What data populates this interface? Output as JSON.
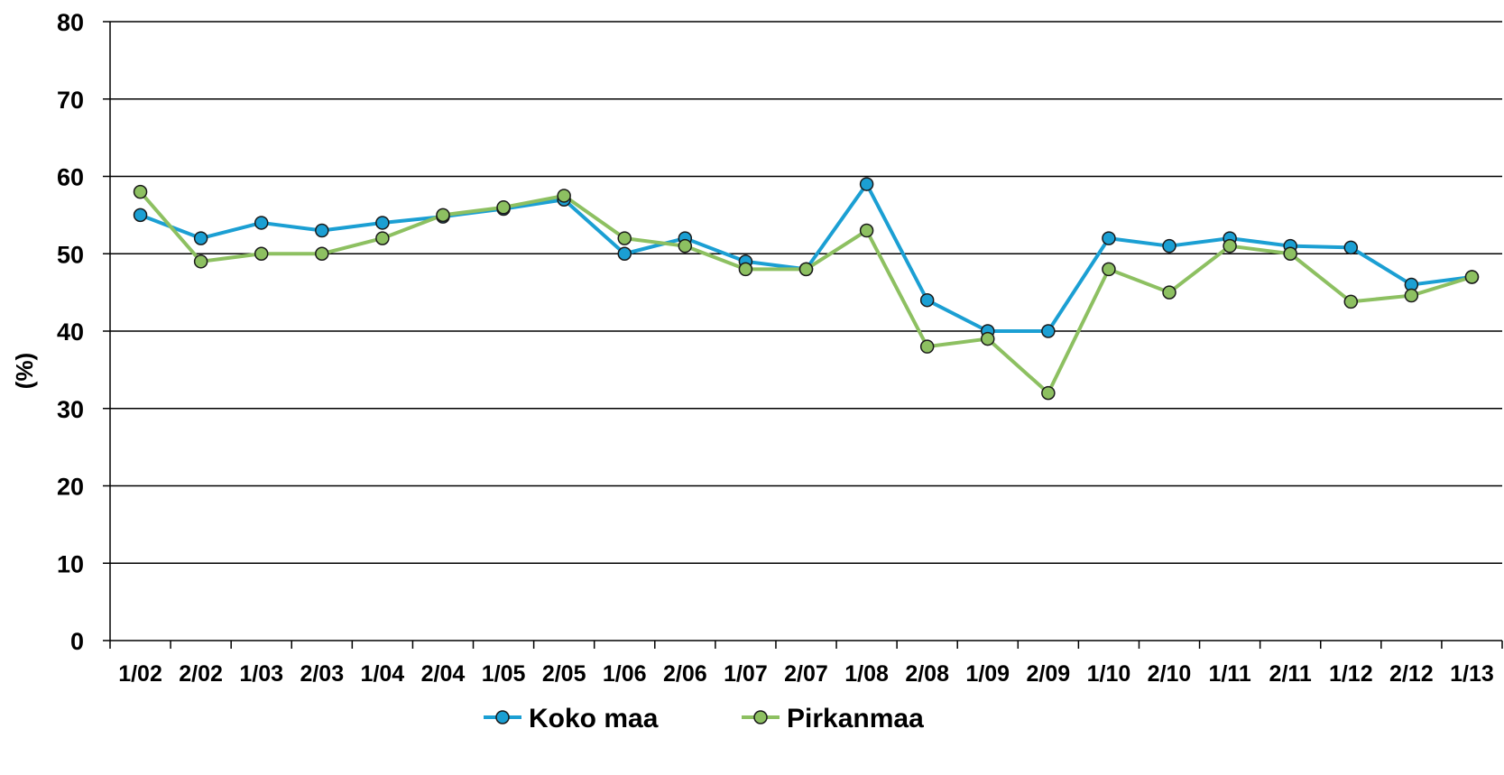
{
  "chart_data": {
    "type": "line",
    "title": "",
    "xlabel": "",
    "ylabel": "(%)",
    "ylim": [
      0,
      80
    ],
    "yticks": [
      0,
      10,
      20,
      30,
      40,
      50,
      60,
      70,
      80
    ],
    "grid": true,
    "legend_position": "bottom-center",
    "categories": [
      "1/02",
      "2/02",
      "1/03",
      "2/03",
      "1/04",
      "2/04",
      "1/05",
      "2/05",
      "1/06",
      "2/06",
      "1/07",
      "2/07",
      "1/08",
      "2/08",
      "1/09",
      "2/09",
      "1/10",
      "2/10",
      "1/11",
      "2/11",
      "1/12",
      "2/12",
      "1/13"
    ],
    "series": [
      {
        "name": "Koko maa",
        "color": "#1B9FD3",
        "values": [
          55,
          52,
          54,
          53,
          54,
          54.8,
          55.8,
          57,
          50,
          52,
          49,
          48,
          59,
          44,
          40,
          40,
          52,
          51,
          52,
          51,
          50.8,
          46,
          47
        ]
      },
      {
        "name": "Pirkanmaa",
        "color": "#8DC061",
        "values": [
          58,
          49,
          50,
          50,
          52,
          55,
          56,
          57.5,
          52,
          51,
          48,
          48,
          53,
          38,
          39,
          32,
          48,
          45,
          51,
          50,
          43.8,
          44.6,
          47
        ]
      }
    ]
  }
}
